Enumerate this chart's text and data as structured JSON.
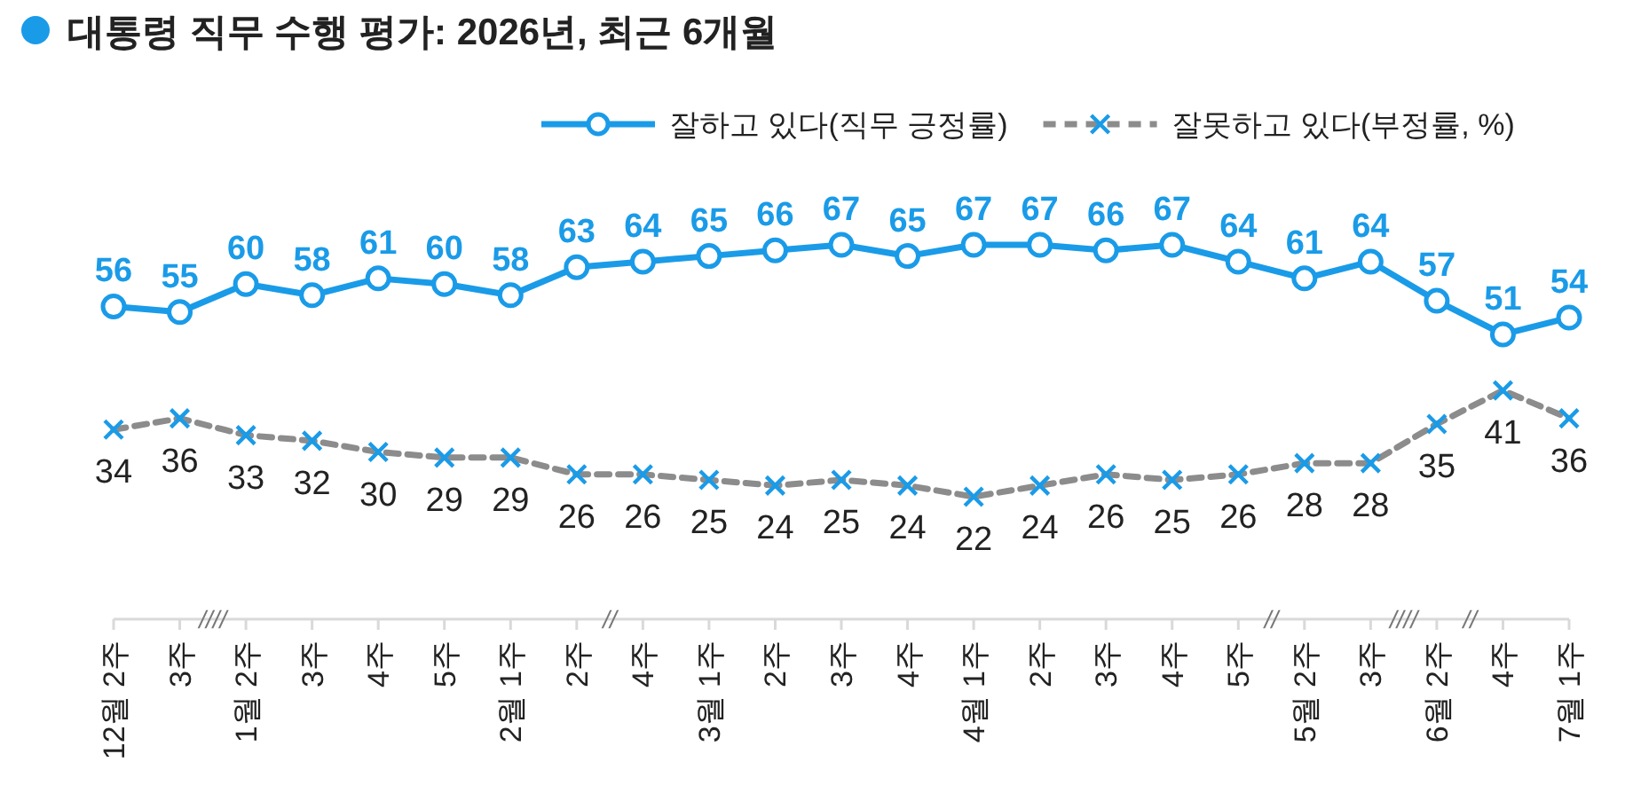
{
  "chart_data": {
    "type": "line",
    "title": "대통령 직무 수행 평가: 2026년, 최근 6개월",
    "categories": [
      "12월 2주",
      "3주",
      "1월 2주",
      "3주",
      "4주",
      "5주",
      "2월 1주",
      "2주",
      "4주",
      "3월 1주",
      "2주",
      "3주",
      "4주",
      "4월 1주",
      "2주",
      "3주",
      "4주",
      "5주",
      "5월 2주",
      "3주",
      "6월 2주",
      "4주",
      "7월 1주"
    ],
    "series": [
      {
        "name": "잘하고 있다(직무 긍정률)",
        "color": "#1a9be8",
        "marker": "circle",
        "line_style": "solid",
        "values": [
          56,
          55,
          60,
          58,
          61,
          60,
          58,
          63,
          64,
          65,
          66,
          67,
          65,
          67,
          67,
          66,
          67,
          64,
          61,
          64,
          57,
          51,
          54
        ]
      },
      {
        "name": "잘못하고 있다(부정률, %)",
        "color": "#8c8c8c",
        "marker": "cross",
        "line_style": "dashed",
        "values": [
          34,
          36,
          33,
          32,
          30,
          29,
          29,
          26,
          26,
          25,
          24,
          25,
          24,
          22,
          24,
          26,
          25,
          26,
          28,
          28,
          35,
          41,
          36
        ]
      }
    ],
    "data_labels": true,
    "legend": "top right",
    "grid": false,
    "annotations": [
      "////",
      "//",
      "//",
      "////",
      "//"
    ]
  }
}
